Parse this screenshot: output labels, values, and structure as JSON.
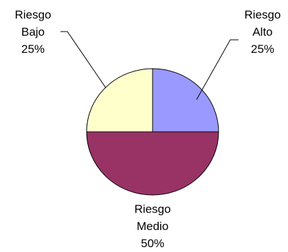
{
  "chart_data": {
    "type": "pie",
    "slices": [
      {
        "category": "Riesgo Alto",
        "line1": "Riesgo",
        "line2": "Alto",
        "pct_label": "25%",
        "value": 25,
        "color": "#9999ff"
      },
      {
        "category": "Riesgo Medio",
        "line1": "Riesgo",
        "line2": "Medio",
        "pct_label": "50%",
        "value": 50,
        "color": "#993366"
      },
      {
        "category": "Riesgo Bajo",
        "line1": "Riesgo",
        "line2": "Bajo",
        "pct_label": "25%",
        "value": 25,
        "color": "#ffffcc"
      }
    ],
    "legend": "none",
    "data_labels": "category and percentage, outside with leader lines"
  }
}
